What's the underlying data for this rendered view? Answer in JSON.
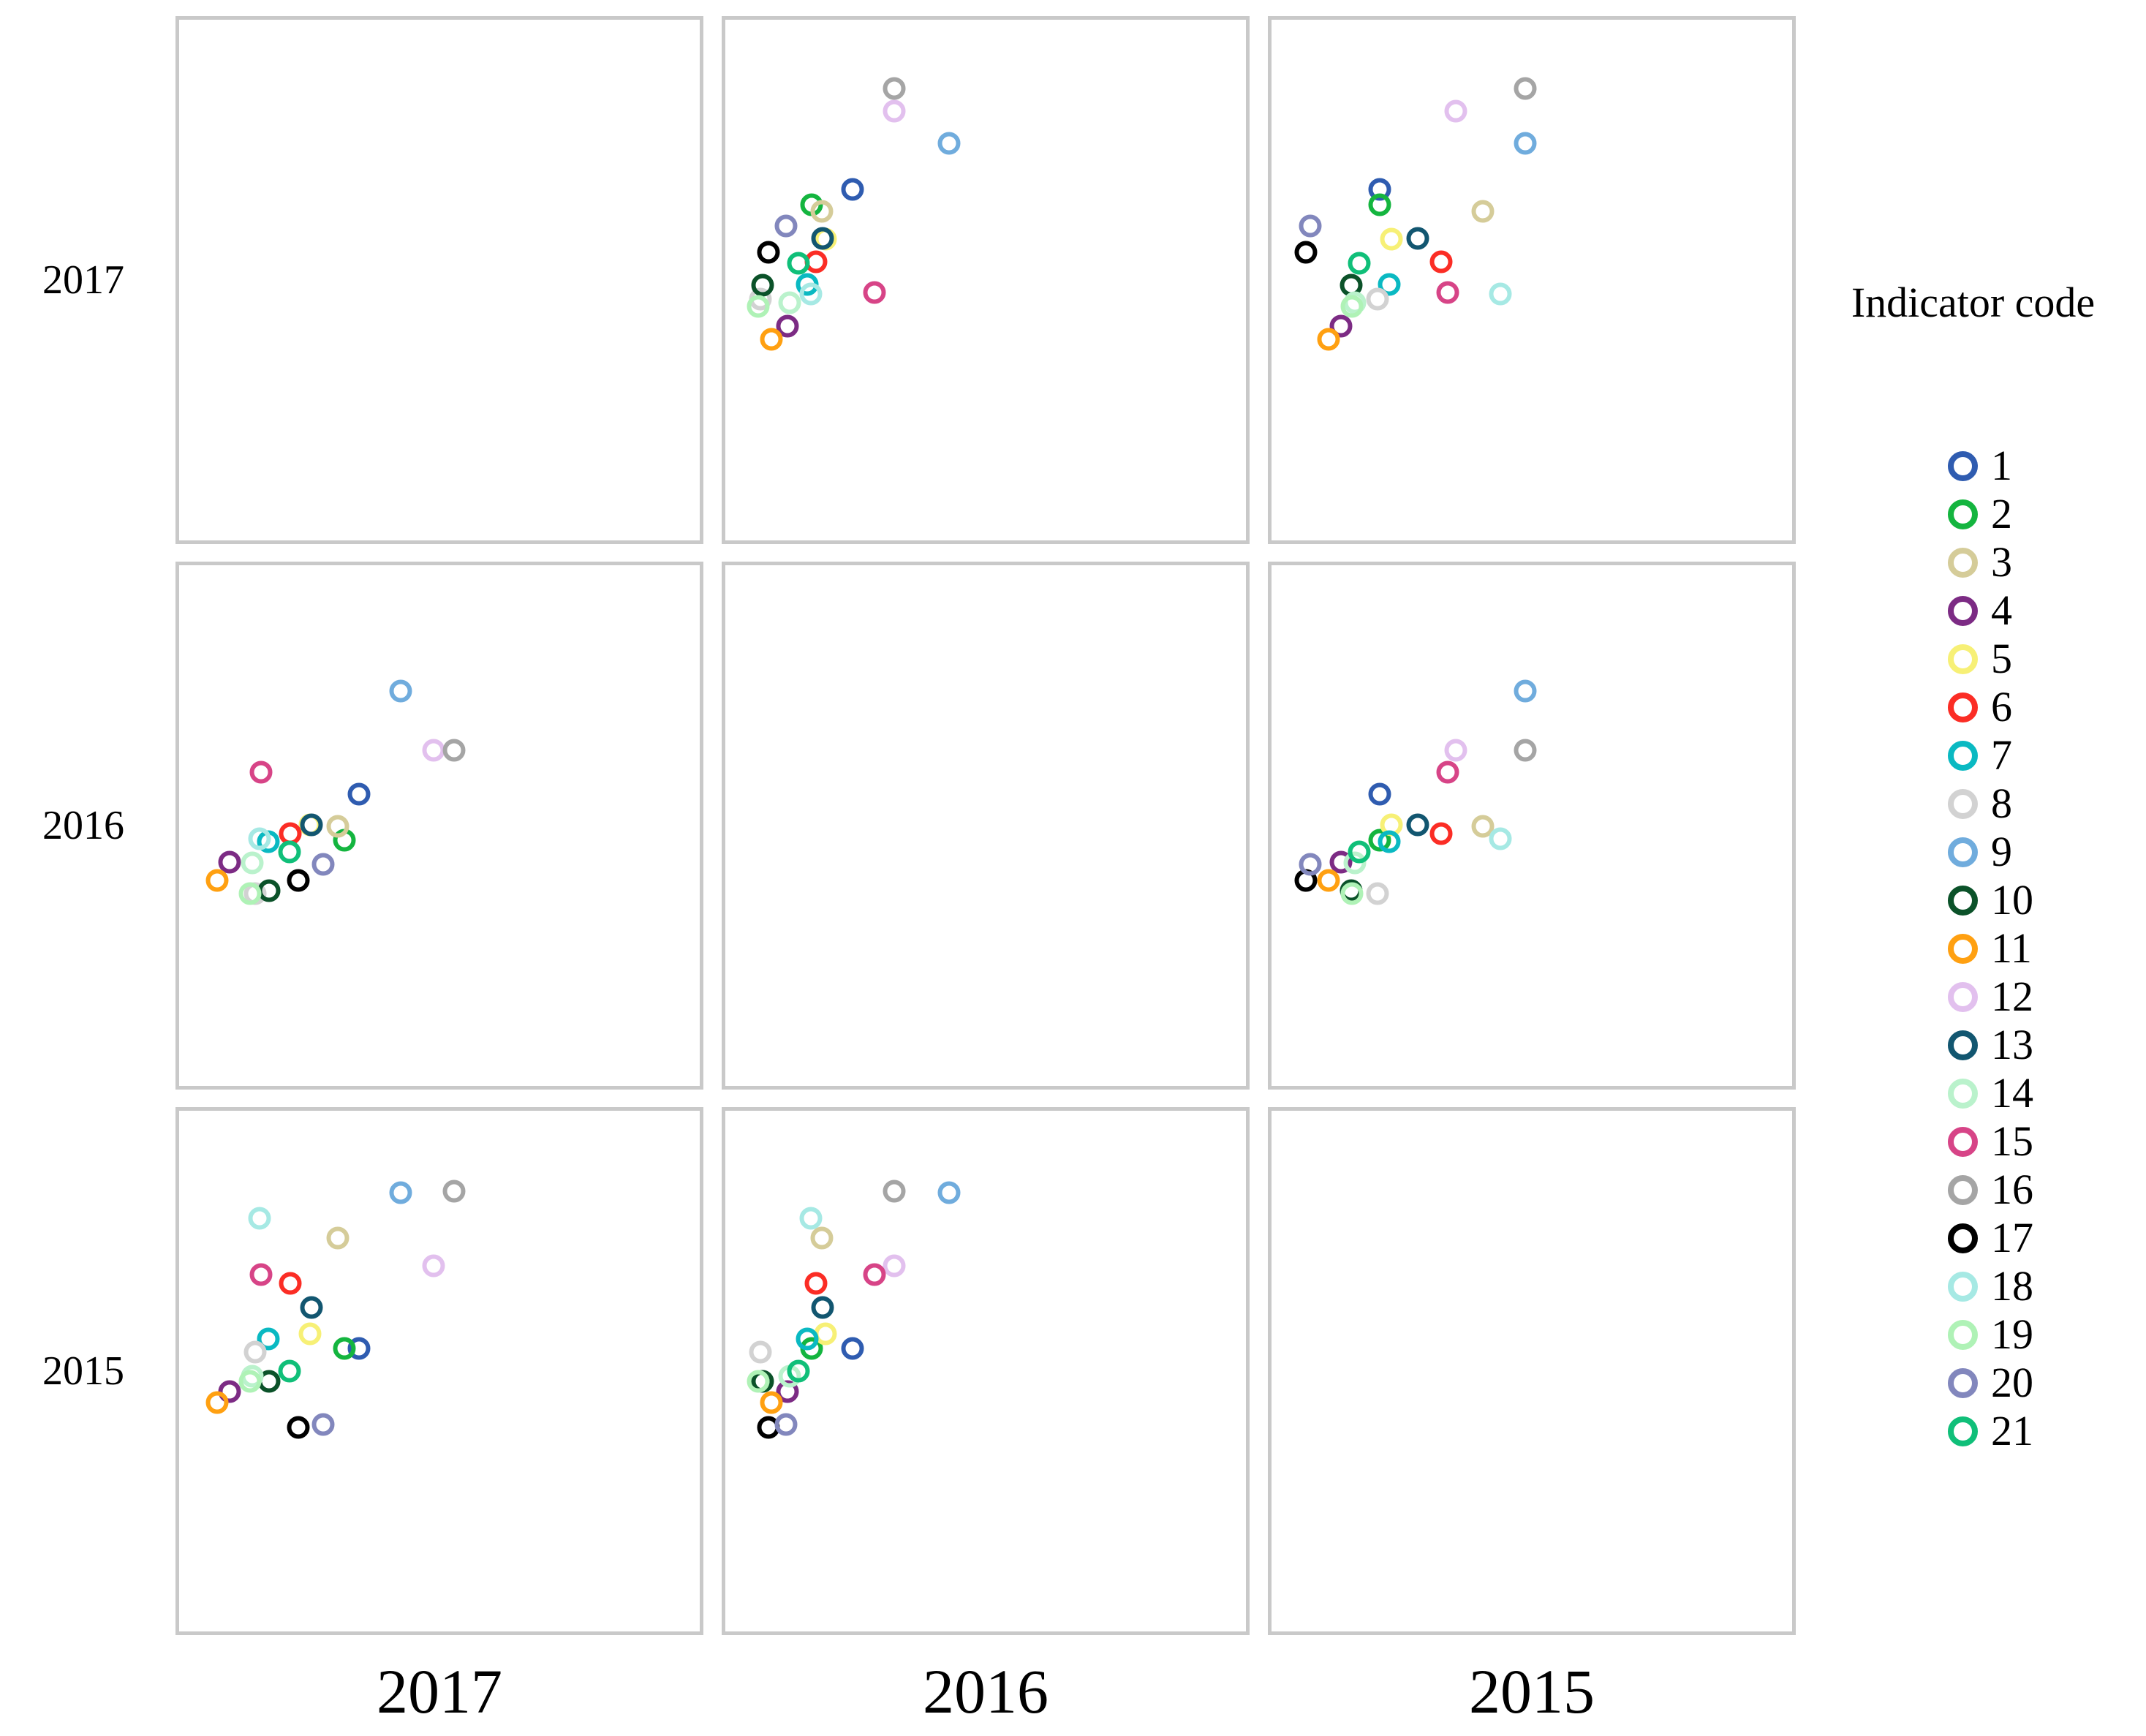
{
  "matrix": {
    "row_labels": [
      "2017",
      "2016",
      "2015"
    ],
    "col_labels": [
      "2017",
      "2016",
      "2015"
    ]
  },
  "legend": {
    "title": "Indicator code",
    "items": [
      {
        "code": "1",
        "color": "#2f5cb0"
      },
      {
        "code": "2",
        "color": "#14b53f"
      },
      {
        "code": "3",
        "color": "#d5cc99"
      },
      {
        "code": "4",
        "color": "#7c2b84"
      },
      {
        "code": "5",
        "color": "#f7f076"
      },
      {
        "code": "6",
        "color": "#fb2d25"
      },
      {
        "code": "7",
        "color": "#0ab9c2"
      },
      {
        "code": "8",
        "color": "#d2d2d2"
      },
      {
        "code": "9",
        "color": "#70acdd"
      },
      {
        "code": "10",
        "color": "#0b5229"
      },
      {
        "code": "11",
        "color": "#ffa011"
      },
      {
        "code": "12",
        "color": "#e2c0ee"
      },
      {
        "code": "13",
        "color": "#125670"
      },
      {
        "code": "14",
        "color": "#baf2cc"
      },
      {
        "code": "15",
        "color": "#d74487"
      },
      {
        "code": "16",
        "color": "#a5a5a5"
      },
      {
        "code": "17",
        "color": "#000000"
      },
      {
        "code": "18",
        "color": "#a6e9e4"
      },
      {
        "code": "19",
        "color": "#aff2b6"
      },
      {
        "code": "20",
        "color": "#8287bd"
      },
      {
        "code": "21",
        "color": "#10bf79"
      }
    ]
  },
  "chart_data": {
    "type": "scatter",
    "subtype": "scatter_matrix",
    "variables": [
      "2017",
      "2016",
      "2015"
    ],
    "diagonal": "empty",
    "legend_title": "Indicator code",
    "legend_position": "right",
    "grid": "off",
    "tick_labels": "none",
    "coordinate_units": "percent of panel; x from left edge, y from top edge; panel (row r, col c) plots point at (x_c, y_r)",
    "points": [
      {
        "code": 1,
        "color": "#2f5cb0",
        "x2017": 34.5,
        "y2017": 32.6,
        "x2016": 24.4,
        "y2016": 43.9,
        "x2015": 20.8,
        "y2015": 45.7
      },
      {
        "code": 2,
        "color": "#14b53f",
        "x2017": 31.7,
        "y2017": 35.5,
        "x2016": 16.6,
        "y2016": 52.8,
        "x2015": 20.8,
        "y2015": 45.6
      },
      {
        "code": 3,
        "color": "#d5cc99",
        "x2017": 30.5,
        "y2017": 36.8,
        "x2016": 18.6,
        "y2016": 50.1,
        "x2015": 40.6,
        "y2015": 24.5
      },
      {
        "code": 4,
        "color": "#7c2b84",
        "x2017": 9.7,
        "y2017": 58.9,
        "x2016": 11.9,
        "y2016": 57.0,
        "x2015": 13.3,
        "y2015": 53.9
      },
      {
        "code": 5,
        "color": "#f7f076",
        "x2017": 25.1,
        "y2017": 42.2,
        "x2016": 19.3,
        "y2016": 49.8,
        "x2015": 23.1,
        "y2015": 42.9
      },
      {
        "code": 6,
        "color": "#fb2d25",
        "x2017": 21.4,
        "y2017": 46.5,
        "x2016": 17.4,
        "y2016": 51.5,
        "x2015": 32.6,
        "y2015": 33.2
      },
      {
        "code": 7,
        "color": "#0ab9c2",
        "x2017": 17.1,
        "y2017": 50.8,
        "x2016": 15.8,
        "y2016": 53.1,
        "x2015": 22.6,
        "y2015": 43.8
      },
      {
        "code": 8,
        "color": "#d2d2d2",
        "x2017": 14.6,
        "y2017": 53.7,
        "x2016": 6.8,
        "y2016": 63.0,
        "x2015": 20.4,
        "y2015": 46.3
      },
      {
        "code": 9,
        "color": "#70acdd",
        "x2017": 42.6,
        "y2017": 23.8,
        "x2016": 43.0,
        "y2016": 24.2,
        "x2015": 48.8,
        "y2015": 15.7
      },
      {
        "code": 10,
        "color": "#0b5229",
        "x2017": 17.3,
        "y2017": 51.0,
        "x2016": 7.1,
        "y2016": 62.5,
        "x2015": 15.3,
        "y2015": 52.0
      },
      {
        "code": 11,
        "color": "#ffa011",
        "x2017": 7.3,
        "y2017": 61.4,
        "x2016": 8.8,
        "y2016": 60.5,
        "x2015": 10.9,
        "y2015": 56.1
      },
      {
        "code": 12,
        "color": "#e2c0ee",
        "x2017": 48.9,
        "y2017": 17.5,
        "x2016": 32.4,
        "y2016": 35.5,
        "x2015": 35.4,
        "y2015": 29.8
      },
      {
        "code": 13,
        "color": "#125670",
        "x2017": 25.4,
        "y2017": 42.0,
        "x2016": 18.7,
        "y2016": 49.9,
        "x2015": 28.1,
        "y2015": 37.8
      },
      {
        "code": 14,
        "color": "#baf2cc",
        "x2017": 14.0,
        "y2017": 54.3,
        "x2016": 12.3,
        "y2016": 57.1,
        "x2015": 16.0,
        "y2015": 51.0
      },
      {
        "code": 15,
        "color": "#d74487",
        "x2017": 15.7,
        "y2017": 52.4,
        "x2016": 28.6,
        "y2016": 39.7,
        "x2015": 33.9,
        "y2015": 31.4
      },
      {
        "code": 16,
        "color": "#a5a5a5",
        "x2017": 52.8,
        "y2017": 13.2,
        "x2016": 32.5,
        "y2016": 35.5,
        "x2015": 48.8,
        "y2015": 15.5
      },
      {
        "code": 17,
        "color": "#000000",
        "x2017": 22.9,
        "y2017": 44.7,
        "x2016": 8.3,
        "y2016": 60.6,
        "x2015": 6.6,
        "y2015": 60.8
      },
      {
        "code": 18,
        "color": "#a6e9e4",
        "x2017": 15.5,
        "y2017": 52.6,
        "x2016": 16.4,
        "y2016": 52.5,
        "x2015": 44.0,
        "y2015": 20.6
      },
      {
        "code": 19,
        "color": "#aff2b6",
        "x2017": 13.6,
        "y2017": 55.0,
        "x2016": 6.3,
        "y2016": 63.1,
        "x2015": 15.4,
        "y2015": 51.9
      },
      {
        "code": 20,
        "color": "#8287bd",
        "x2017": 27.7,
        "y2017": 39.6,
        "x2016": 11.7,
        "y2016": 57.5,
        "x2015": 7.4,
        "y2015": 60.2
      },
      {
        "code": 21,
        "color": "#10bf79",
        "x2017": 21.2,
        "y2017": 46.7,
        "x2016": 14.0,
        "y2016": 55.1,
        "x2015": 16.9,
        "y2015": 50.0
      }
    ]
  }
}
